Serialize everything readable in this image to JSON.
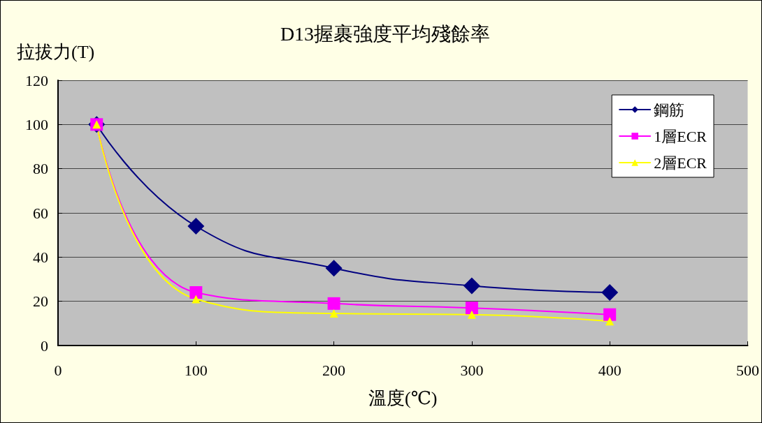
{
  "chart_data": {
    "type": "line",
    "title": "D13握裹強度平均殘餘率",
    "xlabel": "溫度(℃)",
    "ylabel": "拉拔力(T)",
    "x": [
      28,
      100,
      200,
      300,
      400
    ],
    "series": [
      {
        "name": "鋼筋",
        "color": "#000080",
        "marker": "diamond",
        "values": [
          100,
          54,
          35,
          27,
          24
        ]
      },
      {
        "name": "1層ECR",
        "color": "#ff00ff",
        "marker": "square",
        "values": [
          100,
          24,
          19,
          17,
          14
        ]
      },
      {
        "name": "2層ECR",
        "color": "#ffff00",
        "marker": "triangle",
        "values": [
          100,
          21,
          14.5,
          14,
          11
        ]
      }
    ],
    "xlim": [
      0,
      500
    ],
    "xticks": [
      0,
      100,
      200,
      300,
      400,
      500
    ],
    "ylim": [
      0,
      120
    ],
    "yticks": [
      0,
      20,
      40,
      60,
      80,
      100,
      120
    ],
    "grid": "y",
    "legend": "top right",
    "line_style": "solid"
  }
}
